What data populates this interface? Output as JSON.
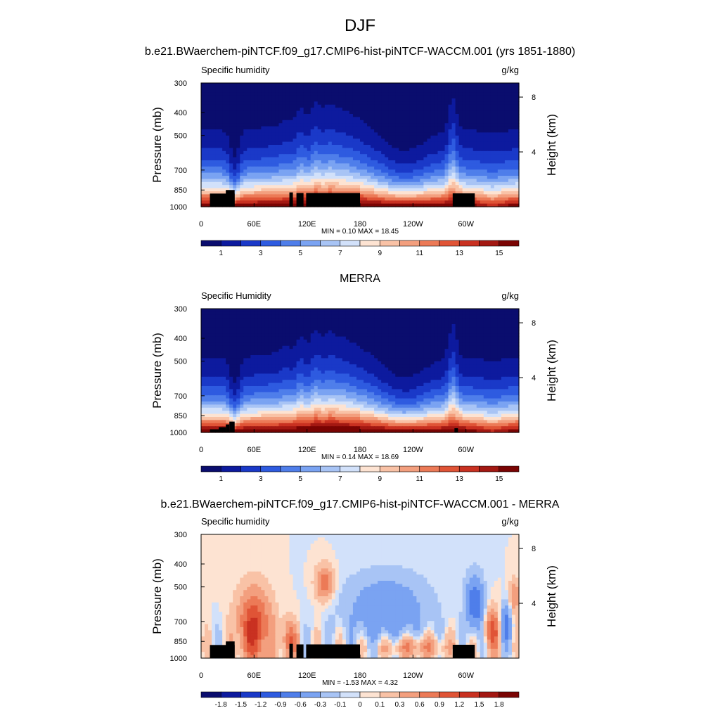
{
  "figure": {
    "title": "DJF",
    "colors": {
      "abs_scale": [
        "#0a0d6e",
        "#0d1a9e",
        "#1a39c8",
        "#2e5be0",
        "#4f7eea",
        "#7aa3f2",
        "#a8c4f5",
        "#d2e1fa",
        "#fde3d2",
        "#f9c2a6",
        "#f39f7e",
        "#ec7a57",
        "#e05436",
        "#c93121",
        "#a31812",
        "#7a0403"
      ],
      "diff_scale": [
        "#0a0d6e",
        "#0d1a9e",
        "#1a39c8",
        "#2e5be0",
        "#4f7eea",
        "#7aa3f2",
        "#a8c4f5",
        "#d2e1fa",
        "#fde3d2",
        "#f9c2a6",
        "#f39f7e",
        "#ec7a57",
        "#e05436",
        "#c93121",
        "#a31812",
        "#7a0403"
      ],
      "topography": "#000000"
    }
  },
  "chart_data": [
    {
      "type": "heatmap",
      "title": "b.e21.BWaerchem-piNTCF.f09_g17.CMIP6-hist-piNTCF-WACCM.001 (yrs 1851-1880)",
      "left_label": "Specific humidity",
      "right_label": "g/kg",
      "ylabel": "Pressure (mb)",
      "y2label": "Height (km)",
      "x_ticks": [
        "0",
        "60E",
        "120E",
        "180",
        "120W",
        "60W"
      ],
      "y_ticks": [
        "300",
        "400",
        "500",
        "700",
        "850",
        "1000"
      ],
      "y2_ticks": [
        "8",
        "4"
      ],
      "xlim": [
        0,
        360
      ],
      "ylim": [
        1000,
        300
      ],
      "y_scale": "log",
      "stats": "MIN =   0.10  MAX =  18.45",
      "min": 0.1,
      "max": 18.45,
      "colorbar_labels": [
        "1",
        "3",
        "5",
        "7",
        "9",
        "11",
        "13",
        "15"
      ],
      "field": "model"
    },
    {
      "type": "heatmap",
      "title": "MERRA",
      "left_label": "Specific Humidity",
      "right_label": "g/kg",
      "ylabel": "Pressure (mb)",
      "y2label": "Height (km)",
      "x_ticks": [
        "0",
        "60E",
        "120E",
        "180",
        "120W",
        "60W"
      ],
      "y_ticks": [
        "300",
        "400",
        "500",
        "700",
        "850",
        "1000"
      ],
      "y2_ticks": [
        "8",
        "4"
      ],
      "xlim": [
        0,
        360
      ],
      "ylim": [
        1000,
        300
      ],
      "y_scale": "log",
      "stats": "MIN =   0.14  MAX =  18.69",
      "min": 0.14,
      "max": 18.69,
      "colorbar_labels": [
        "1",
        "3",
        "5",
        "7",
        "9",
        "11",
        "13",
        "15"
      ],
      "field": "obs"
    },
    {
      "type": "heatmap",
      "title": "b.e21.BWaerchem-piNTCF.f09_g17.CMIP6-hist-piNTCF-WACCM.001 - MERRA",
      "left_label": "Specific humidity",
      "right_label": "g/kg",
      "ylabel": "Pressure (mb)",
      "y2label": "Height (km)",
      "x_ticks": [
        "0",
        "60E",
        "120E",
        "180",
        "120W",
        "60W"
      ],
      "y_ticks": [
        "300",
        "400",
        "500",
        "700",
        "850",
        "1000"
      ],
      "y2_ticks": [
        "8",
        "4"
      ],
      "xlim": [
        0,
        360
      ],
      "ylim": [
        1000,
        300
      ],
      "y_scale": "log",
      "stats": "MIN =  -1.53  MAX =   4.32",
      "min": -1.53,
      "max": 4.32,
      "colorbar_labels": [
        "-1.8",
        "-1.5",
        "-1.2",
        "-0.9",
        "-0.6",
        "-0.3",
        "-0.1",
        "0",
        "0.1",
        "0.3",
        "0.6",
        "0.9",
        "1.2",
        "1.5",
        "1.8"
      ],
      "field": "diff"
    }
  ]
}
